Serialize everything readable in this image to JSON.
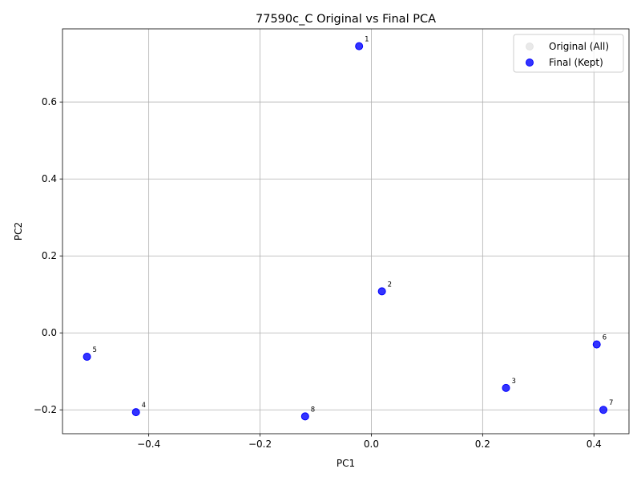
{
  "chart_data": {
    "type": "scatter",
    "title": "77590c_C Original vs Final PCA",
    "xlabel": "PC1",
    "ylabel": "PC2",
    "xlim": [
      -0.555,
      0.463
    ],
    "ylim": [
      -0.262,
      0.79
    ],
    "xticks": [
      -0.4,
      -0.2,
      0.0,
      0.2,
      0.4
    ],
    "xtick_labels": [
      "−0.4",
      "−0.2",
      "0.0",
      "0.2",
      "0.4"
    ],
    "yticks": [
      -0.2,
      0.0,
      0.2,
      0.4,
      0.6
    ],
    "ytick_labels": [
      "−0.2",
      "0.0",
      "0.2",
      "0.4",
      "0.6"
    ],
    "grid": true,
    "legend_position": "top-right",
    "series": [
      {
        "name": "Original (All)",
        "color": "#d3d3d3",
        "points": []
      },
      {
        "name": "Final (Kept)",
        "color": "#0000ff",
        "points": [
          {
            "label": "1",
            "x": -0.022,
            "y": 0.745
          },
          {
            "label": "2",
            "x": 0.019,
            "y": 0.108
          },
          {
            "label": "3",
            "x": 0.242,
            "y": -0.143
          },
          {
            "label": "4",
            "x": -0.423,
            "y": -0.206
          },
          {
            "label": "5",
            "x": -0.511,
            "y": -0.062
          },
          {
            "label": "6",
            "x": 0.405,
            "y": -0.03
          },
          {
            "label": "7",
            "x": 0.417,
            "y": -0.2
          },
          {
            "label": "8",
            "x": -0.119,
            "y": -0.217
          }
        ]
      }
    ]
  }
}
